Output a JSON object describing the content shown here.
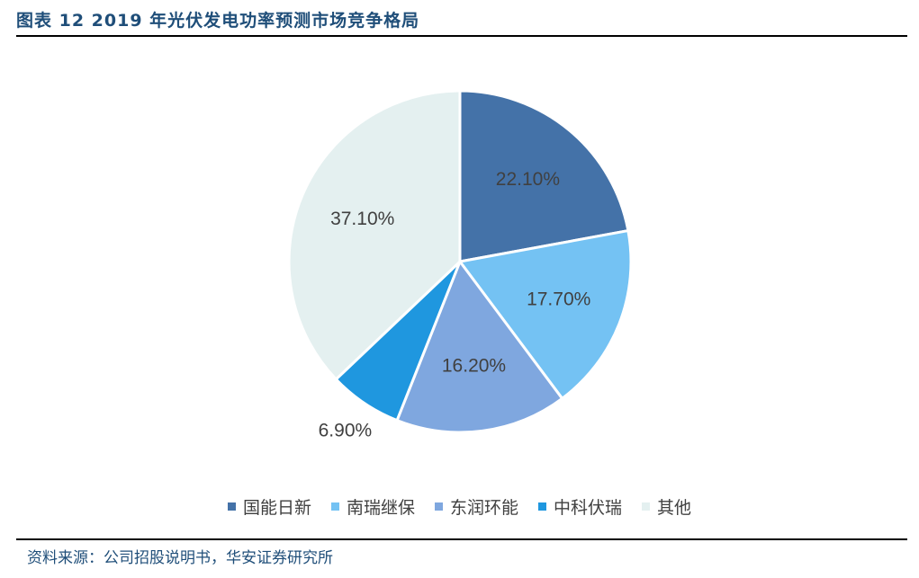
{
  "figure": {
    "title": "图表 12  2019 年光伏发电功率预测市场竞争格局",
    "source": "资料来源：公司招股说明书，华安证券研究所"
  },
  "chart_data": {
    "type": "pie",
    "categories": [
      "国能日新",
      "南瑞继保",
      "东润环能",
      "中科伏瑞",
      "其他"
    ],
    "values": [
      22.1,
      17.7,
      16.2,
      6.9,
      37.1
    ],
    "labels": [
      "22.10%",
      "17.70%",
      "16.20%",
      "6.90%",
      "37.10%"
    ],
    "colors": [
      "#4472a8",
      "#74c2f3",
      "#7fa7df",
      "#1f97df",
      "#e4f0f0"
    ],
    "start_angle_deg": 0,
    "direction": "clockwise",
    "legend_position": "bottom"
  }
}
